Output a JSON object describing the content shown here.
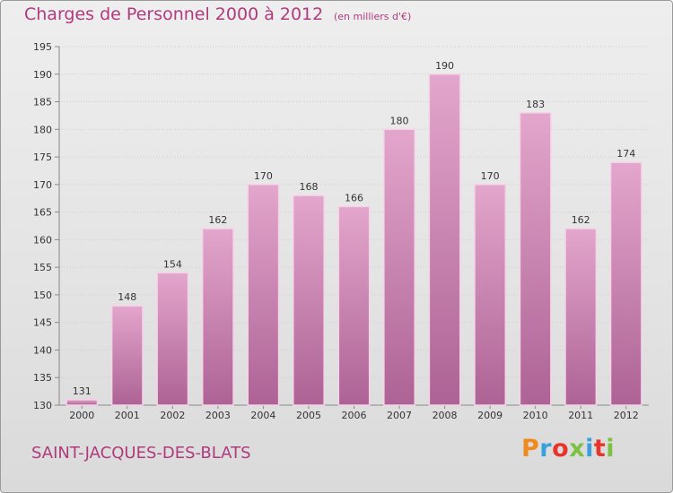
{
  "header": {
    "title": "Charges de Personnel 2000 à 2012",
    "subtitle": "(en milliers d'€)"
  },
  "footer": {
    "commune": "SAINT-JACQUES-DES-BLATS",
    "brand": "Proxiti",
    "brand_colors": [
      "#f08a1c",
      "#3aa0dc",
      "#e8352b",
      "#7cc242",
      "#3aa0dc",
      "#e8352b",
      "#7cc242"
    ]
  },
  "colors": {
    "bar_top": "#e3a6cc",
    "bar_bottom": "#ad6395",
    "bar_edge": "#f4d3e7",
    "grid": "#cfcfcf",
    "axis": "#888888",
    "accent": "#b03a7e"
  },
  "chart_data": {
    "type": "bar",
    "title": "Charges de Personnel 2000 à 2012",
    "subtitle": "(en milliers d'€)",
    "xlabel": "",
    "ylabel": "",
    "categories": [
      "2000",
      "2001",
      "2002",
      "2003",
      "2004",
      "2005",
      "2006",
      "2007",
      "2008",
      "2009",
      "2010",
      "2011",
      "2012"
    ],
    "values": [
      131,
      148,
      154,
      162,
      170,
      168,
      166,
      180,
      190,
      170,
      183,
      162,
      174
    ],
    "ylim": [
      130,
      195
    ],
    "yticks": [
      130,
      135,
      140,
      145,
      150,
      155,
      160,
      165,
      170,
      175,
      180,
      185,
      190,
      195
    ],
    "grid": true,
    "data_labels": true
  }
}
